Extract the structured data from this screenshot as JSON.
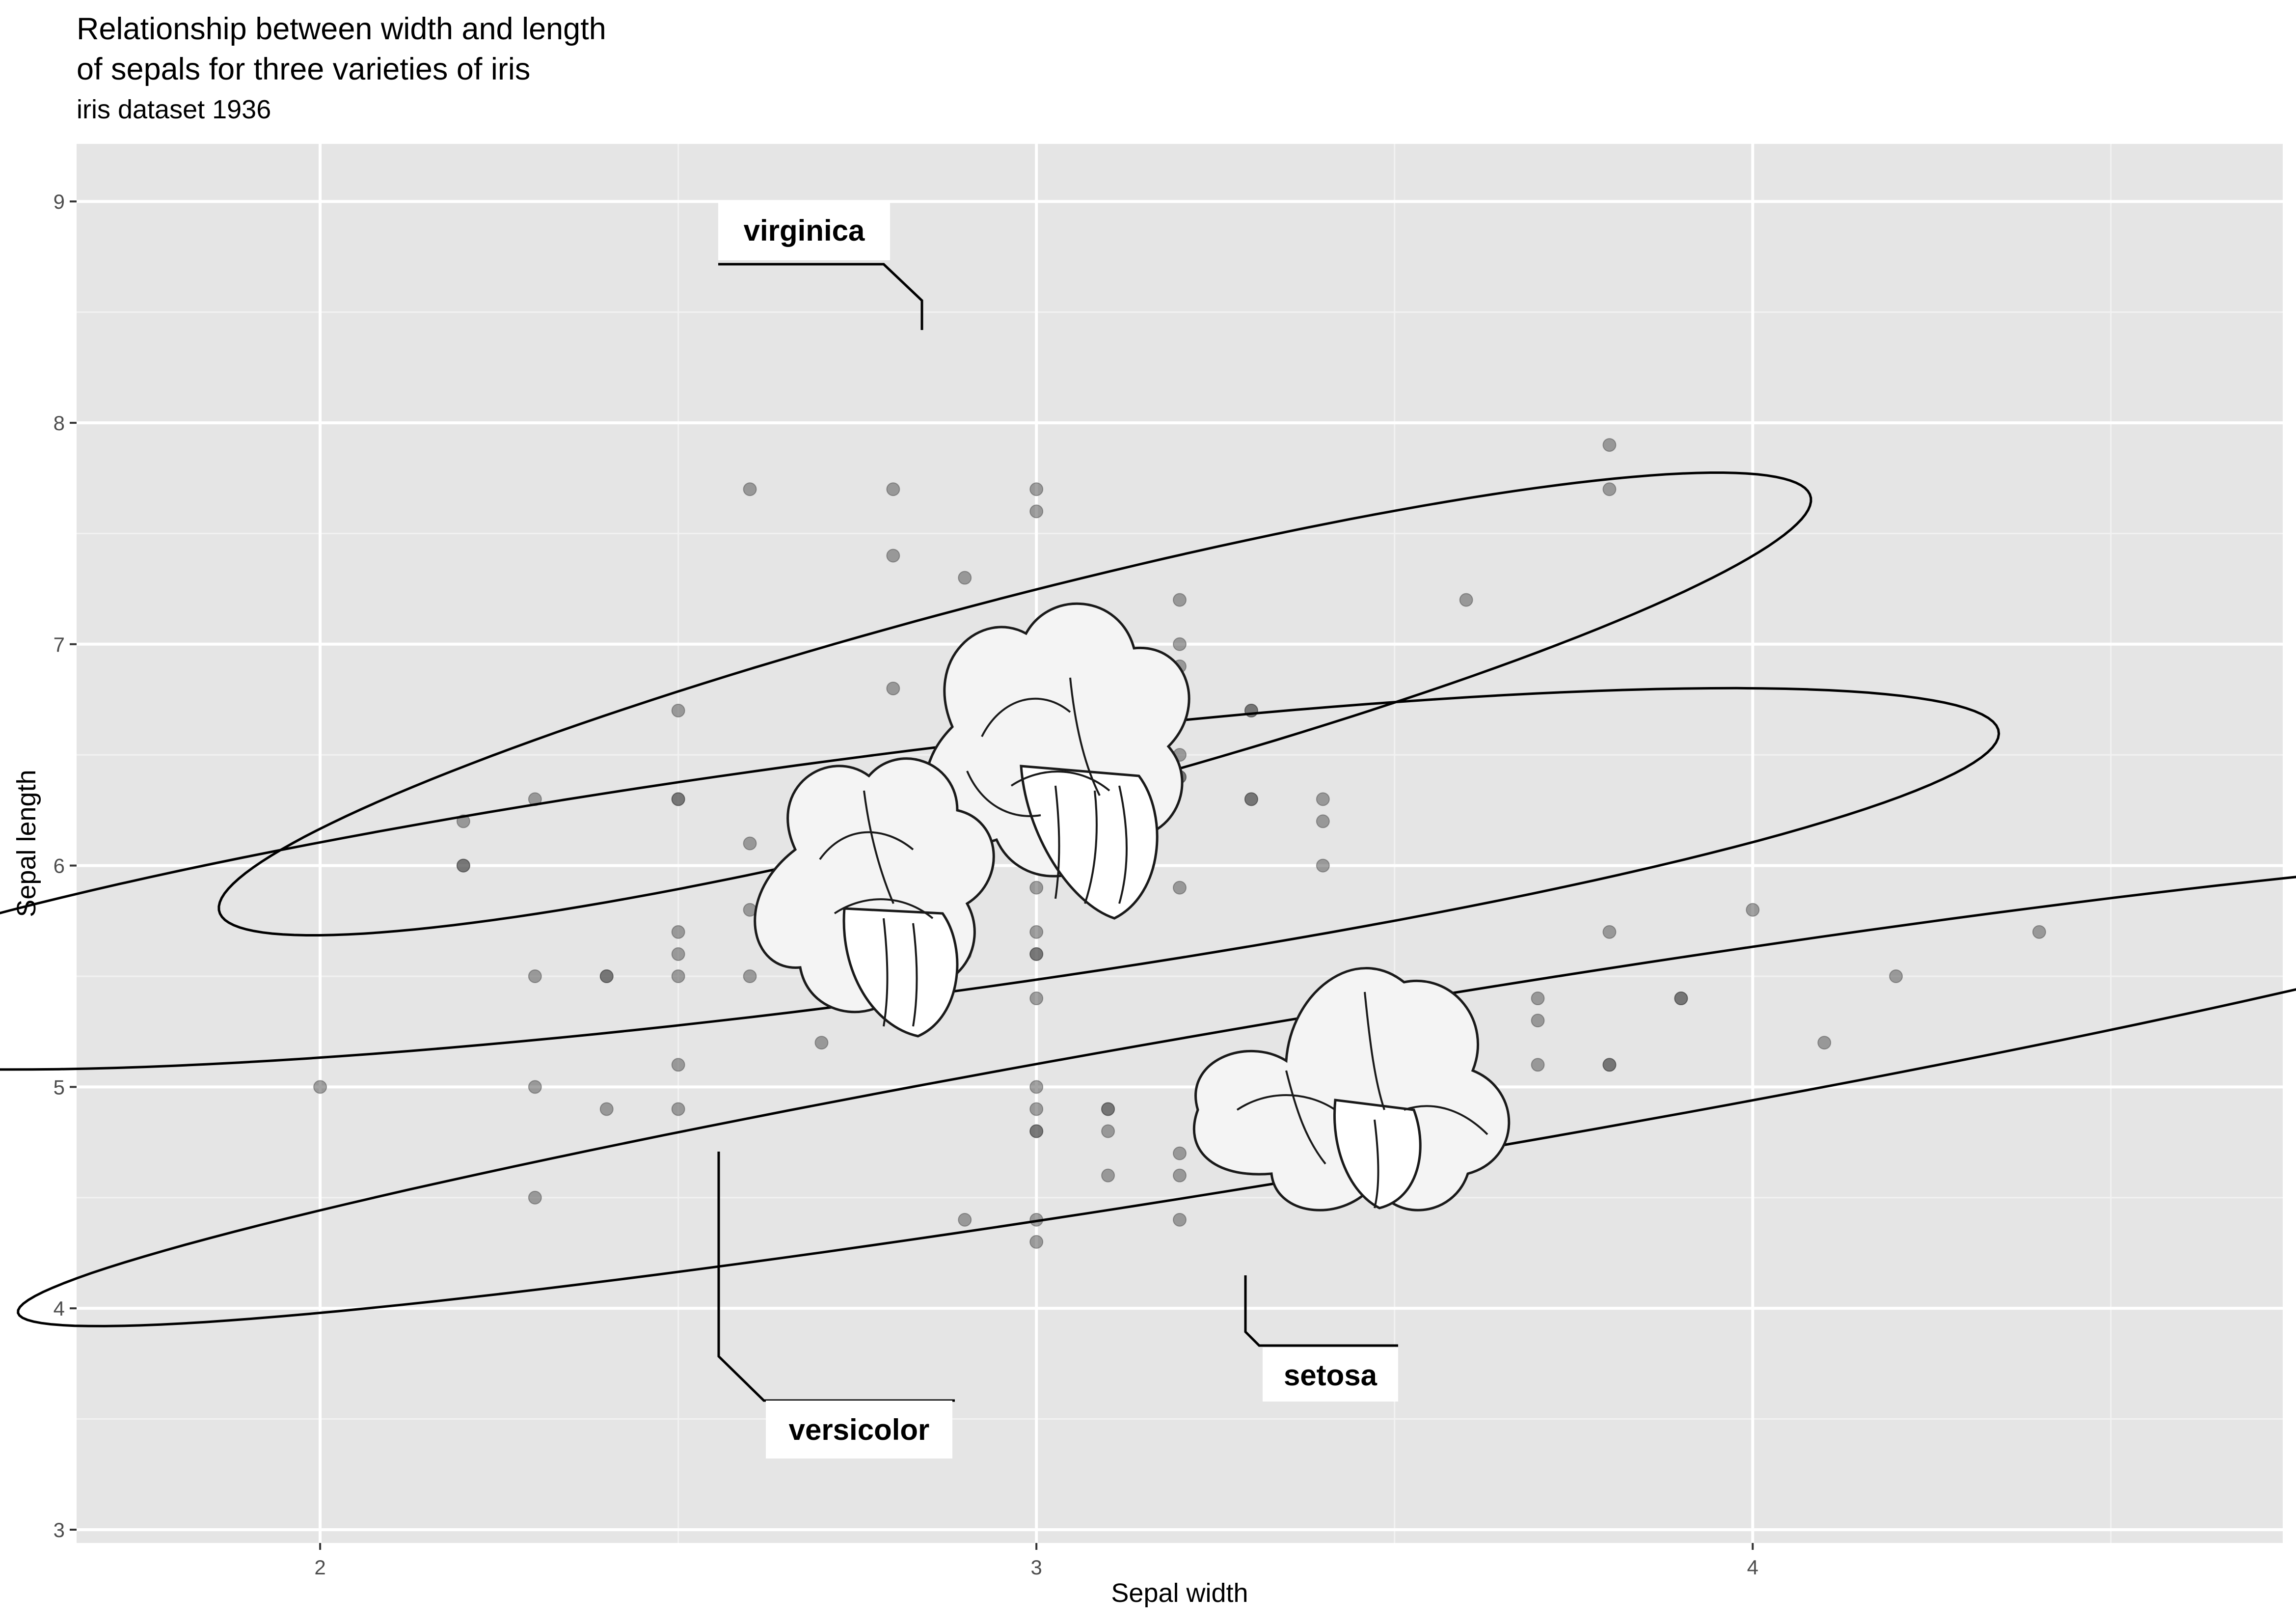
{
  "chart_data": {
    "type": "scatter",
    "title_lines": [
      "Relationship between width and length",
      "of sepals for three varieties of iris"
    ],
    "subtitle": "iris dataset 1936",
    "xlabel": "Sepal width",
    "ylabel": "Sepal length",
    "xlim": [
      1.66,
      4.74
    ],
    "ylim": [
      2.94,
      9.26
    ],
    "x_ticks": [
      2,
      3,
      4
    ],
    "y_ticks": [
      3,
      4,
      5,
      6,
      7,
      8,
      9
    ],
    "grid": true,
    "point_color": "#595959",
    "panel_color": "#e5e5e5",
    "points": [
      [
        2.0,
        5.0
      ],
      [
        2.2,
        6.2
      ],
      [
        2.2,
        6.0
      ],
      [
        2.2,
        6.0
      ],
      [
        2.3,
        6.3
      ],
      [
        2.3,
        5.5
      ],
      [
        2.3,
        5.0
      ],
      [
        2.3,
        4.5
      ],
      [
        2.4,
        5.5
      ],
      [
        2.4,
        5.5
      ],
      [
        2.4,
        4.9
      ],
      [
        2.5,
        6.7
      ],
      [
        2.5,
        6.3
      ],
      [
        2.5,
        6.3
      ],
      [
        2.5,
        5.7
      ],
      [
        2.5,
        5.6
      ],
      [
        2.5,
        5.5
      ],
      [
        2.5,
        5.1
      ],
      [
        2.5,
        4.9
      ],
      [
        2.6,
        7.7
      ],
      [
        2.6,
        6.1
      ],
      [
        2.6,
        5.5
      ],
      [
        2.6,
        5.8
      ],
      [
        2.7,
        5.2
      ],
      [
        2.7,
        5.8
      ],
      [
        2.7,
        6.0
      ],
      [
        2.8,
        7.7
      ],
      [
        2.8,
        7.4
      ],
      [
        2.8,
        6.8
      ],
      [
        2.8,
        6.3
      ],
      [
        2.8,
        6.1
      ],
      [
        2.8,
        5.7
      ],
      [
        2.9,
        7.3
      ],
      [
        2.9,
        6.2
      ],
      [
        2.9,
        6.0
      ],
      [
        2.9,
        5.7
      ],
      [
        2.9,
        5.6
      ],
      [
        2.9,
        4.4
      ],
      [
        3.0,
        7.7
      ],
      [
        3.0,
        7.6
      ],
      [
        3.0,
        6.5
      ],
      [
        3.0,
        6.0
      ],
      [
        3.0,
        5.9
      ],
      [
        3.0,
        5.7
      ],
      [
        3.0,
        5.6
      ],
      [
        3.0,
        5.6
      ],
      [
        3.0,
        5.4
      ],
      [
        3.0,
        5.0
      ],
      [
        3.0,
        4.9
      ],
      [
        3.0,
        4.8
      ],
      [
        3.0,
        4.8
      ],
      [
        3.0,
        4.4
      ],
      [
        3.0,
        4.3
      ],
      [
        3.1,
        4.9
      ],
      [
        3.1,
        4.9
      ],
      [
        3.1,
        4.8
      ],
      [
        3.1,
        4.6
      ],
      [
        3.2,
        7.2
      ],
      [
        3.2,
        7.0
      ],
      [
        3.2,
        6.9
      ],
      [
        3.2,
        6.8
      ],
      [
        3.2,
        6.5
      ],
      [
        3.2,
        6.4
      ],
      [
        3.2,
        6.4
      ],
      [
        3.2,
        5.9
      ],
      [
        3.2,
        4.7
      ],
      [
        3.2,
        4.6
      ],
      [
        3.2,
        4.4
      ],
      [
        3.3,
        6.7
      ],
      [
        3.3,
        6.7
      ],
      [
        3.3,
        6.3
      ],
      [
        3.3,
        6.3
      ],
      [
        3.4,
        6.3
      ],
      [
        3.4,
        6.2
      ],
      [
        3.4,
        6.0
      ],
      [
        3.6,
        7.2
      ],
      [
        3.6,
        5.0
      ],
      [
        3.6,
        4.9
      ],
      [
        3.7,
        5.4
      ],
      [
        3.7,
        5.3
      ],
      [
        3.7,
        5.1
      ],
      [
        3.8,
        7.9
      ],
      [
        3.8,
        7.7
      ],
      [
        3.8,
        5.7
      ],
      [
        3.8,
        5.1
      ],
      [
        3.8,
        5.1
      ],
      [
        3.9,
        5.4
      ],
      [
        3.9,
        5.4
      ],
      [
        4.0,
        5.8
      ],
      [
        4.1,
        5.2
      ],
      [
        4.2,
        5.5
      ],
      [
        4.4,
        5.7
      ]
    ],
    "ellipses": [
      {
        "name": "virginica",
        "cx": 2.97,
        "cy": 6.73,
        "a": 1.48,
        "b": 0.37,
        "angle_deg": 43
      },
      {
        "name": "versicolor",
        "cx": 2.77,
        "cy": 5.94,
        "a": 1.72,
        "b": 0.51,
        "angle_deg": 25
      },
      {
        "name": "setosa",
        "cx": 3.43,
        "cy": 4.98,
        "a": 2.11,
        "b": 0.32,
        "angle_deg": 29
      }
    ],
    "annotations": [
      {
        "name": "virginica",
        "label": "virginica"
      },
      {
        "name": "versicolor",
        "label": "versicolor"
      },
      {
        "name": "setosa",
        "label": "setosa"
      }
    ]
  }
}
